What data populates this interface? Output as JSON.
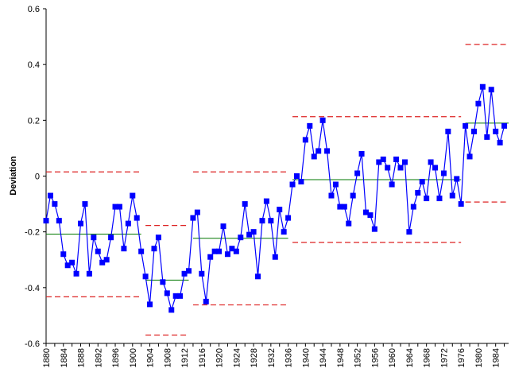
{
  "chart_data": {
    "type": "line",
    "title": "",
    "xlabel": "",
    "ylabel": "Deviation",
    "ylim": [
      -0.6,
      0.6
    ],
    "yticks": [
      0.6,
      0.4,
      0.2,
      0,
      -0.2,
      -0.4,
      -0.6
    ],
    "ytick_labels": [
      "0.6",
      "0.4",
      "0.2",
      "0",
      "-0.2",
      "-0.4",
      "-0.6"
    ],
    "xlim": [
      1880,
      1987
    ],
    "xticks": [
      1880,
      1884,
      1888,
      1892,
      1896,
      1900,
      1904,
      1908,
      1912,
      1916,
      1920,
      1924,
      1928,
      1932,
      1936,
      1940,
      1944,
      1948,
      1952,
      1956,
      1960,
      1964,
      1968,
      1972,
      1976,
      1980,
      1984
    ],
    "xtick_labels": [
      "1880",
      "1884",
      "1888",
      "1892",
      "1896",
      "1900",
      "1904",
      "1908",
      "1912",
      "1916",
      "1920",
      "1924",
      "1928",
      "1932",
      "1936",
      "1940",
      "1944",
      "1948",
      "1952",
      "1956",
      "1960",
      "1964",
      "1968",
      "1972",
      "1976",
      "1980",
      "1984"
    ],
    "grid": false,
    "colors": {
      "series": "#0000ff",
      "center_line": "#007700",
      "limit_line": "#dd2222"
    },
    "series": [
      {
        "x": [
          1880,
          1881,
          1882,
          1883,
          1884,
          1885,
          1886,
          1887,
          1888,
          1889,
          1890,
          1891,
          1892,
          1893,
          1894,
          1895,
          1896,
          1897,
          1898,
          1899,
          1900,
          1901,
          1902,
          1903,
          1904,
          1905,
          1906,
          1907,
          1908,
          1909,
          1910,
          1911,
          1912,
          1913,
          1914,
          1915,
          1916,
          1917,
          1918,
          1919,
          1920,
          1921,
          1922,
          1923,
          1924,
          1925,
          1926,
          1927,
          1928,
          1929,
          1930,
          1931,
          1932,
          1933,
          1934,
          1935,
          1936,
          1937,
          1938,
          1939,
          1940,
          1941,
          1942,
          1943,
          1944,
          1945,
          1946,
          1947,
          1948,
          1949,
          1950,
          1951,
          1952,
          1953,
          1954,
          1955,
          1956,
          1957,
          1958,
          1959,
          1960,
          1961,
          1962,
          1963,
          1964,
          1965,
          1966,
          1967,
          1968,
          1969,
          1970,
          1971,
          1972,
          1973,
          1974,
          1975,
          1976,
          1977,
          1978,
          1979,
          1980,
          1981,
          1982,
          1983,
          1984,
          1985,
          1986
        ],
        "y": [
          -0.16,
          -0.07,
          -0.1,
          -0.16,
          -0.28,
          -0.32,
          -0.31,
          -0.35,
          -0.17,
          -0.1,
          -0.35,
          -0.22,
          -0.27,
          -0.31,
          -0.3,
          -0.22,
          -0.11,
          -0.11,
          -0.26,
          -0.17,
          -0.07,
          -0.15,
          -0.27,
          -0.36,
          -0.46,
          -0.26,
          -0.22,
          -0.38,
          -0.42,
          -0.48,
          -0.43,
          -0.43,
          -0.35,
          -0.34,
          -0.15,
          -0.13,
          -0.35,
          -0.45,
          -0.29,
          -0.27,
          -0.27,
          -0.18,
          -0.28,
          -0.26,
          -0.27,
          -0.22,
          -0.1,
          -0.21,
          -0.2,
          -0.36,
          -0.16,
          -0.09,
          -0.16,
          -0.29,
          -0.12,
          -0.2,
          -0.15,
          -0.03,
          0.0,
          -0.02,
          0.13,
          0.18,
          0.07,
          0.09,
          0.2,
          0.09,
          -0.07,
          -0.03,
          -0.11,
          -0.11,
          -0.17,
          -0.07,
          0.01,
          0.08,
          -0.13,
          -0.14,
          -0.19,
          0.05,
          0.06,
          0.03,
          -0.03,
          0.06,
          0.03,
          0.05,
          -0.2,
          -0.11,
          -0.06,
          -0.02,
          -0.08,
          0.05,
          0.03,
          -0.08,
          0.01,
          0.16,
          -0.07,
          -0.01,
          -0.1,
          0.18,
          0.07,
          0.16,
          0.26,
          0.32,
          0.14,
          0.31,
          0.16,
          0.12,
          0.18
        ]
      }
    ],
    "segments": [
      {
        "start": 1880,
        "end": 1902,
        "mean": -0.208,
        "upper": 0.015,
        "lower": -0.433
      },
      {
        "start": 1903,
        "end": 1913,
        "mean": -0.373,
        "upper": -0.177,
        "lower": -0.57
      },
      {
        "start": 1914,
        "end": 1936,
        "mean": -0.223,
        "upper": 0.015,
        "lower": -0.462
      },
      {
        "start": 1937,
        "end": 1976,
        "mean": -0.013,
        "upper": 0.213,
        "lower": -0.238
      },
      {
        "start": 1977,
        "end": 1987,
        "mean": 0.19,
        "upper": 0.472,
        "lower": -0.093
      }
    ]
  }
}
